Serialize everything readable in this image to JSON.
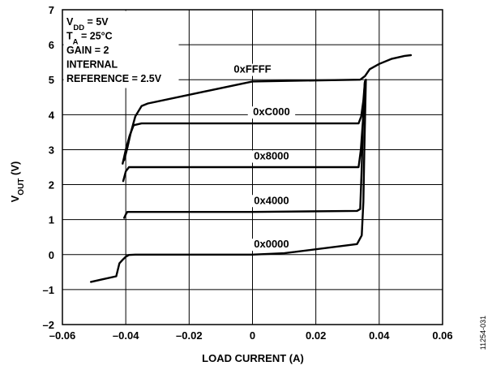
{
  "figure_id": "11254-031",
  "chart_data": {
    "type": "line",
    "title": "",
    "xlabel": "LOAD CURRENT (A)",
    "ylabel": {
      "base": "V",
      "sub": "OUT",
      "suffix": " (V)"
    },
    "xlim": [
      -0.06,
      0.06
    ],
    "ylim": [
      -2,
      7
    ],
    "grid": true,
    "xticks": [
      -0.06,
      -0.04,
      -0.02,
      0,
      0.02,
      0.04,
      0.06
    ],
    "xtick_labels": [
      "–0.06",
      "–0.04",
      "–0.02",
      "0",
      "0.02",
      "0.04",
      "0.06"
    ],
    "yticks": [
      -2,
      -1,
      0,
      1,
      2,
      3,
      4,
      5,
      6,
      7
    ],
    "ytick_labels": [
      "–2",
      "–1",
      "0",
      "1",
      "2",
      "3",
      "4",
      "5",
      "6",
      "7"
    ],
    "annotations": [
      {
        "parts": [
          [
            "V",
            ""
          ],
          [
            "DD",
            "sub"
          ],
          [
            " = 5V",
            ""
          ]
        ]
      },
      {
        "parts": [
          [
            "T",
            ""
          ],
          [
            "A",
            "sub"
          ],
          [
            " = 25°C",
            ""
          ]
        ]
      },
      {
        "parts": [
          [
            "GAIN = 2",
            ""
          ]
        ]
      },
      {
        "parts": [
          [
            "INTERNAL",
            ""
          ]
        ]
      },
      {
        "parts": [
          [
            "REFERENCE = 2.5V",
            ""
          ]
        ]
      }
    ],
    "series": [
      {
        "name": "0xFFFF",
        "label_at": [
          0,
          5.2
        ],
        "x": [
          -0.0405,
          -0.0395,
          -0.0385,
          -0.037,
          -0.035,
          -0.033,
          0,
          0.034,
          0.0355,
          0.037,
          0.04,
          0.044,
          0.048,
          0.05
        ],
        "y": [
          2.7,
          3.05,
          3.45,
          3.95,
          4.25,
          4.32,
          4.95,
          5.0,
          5.1,
          5.3,
          5.45,
          5.6,
          5.68,
          5.7
        ]
      },
      {
        "name": "0xC000",
        "label_at": [
          0.006,
          3.98
        ],
        "x": [
          -0.041,
          -0.04,
          -0.0388,
          -0.0375,
          -0.035,
          0,
          0.0335,
          0.0343,
          0.035,
          0.0355
        ],
        "y": [
          2.6,
          3.0,
          3.4,
          3.7,
          3.75,
          3.75,
          3.75,
          3.95,
          4.4,
          4.95
        ]
      },
      {
        "name": "0x8000",
        "label_at": [
          0.006,
          2.72
        ],
        "x": [
          -0.0408,
          -0.04,
          -0.039,
          -0.035,
          0,
          0.0335,
          0.0342,
          0.035,
          0.0355
        ],
        "y": [
          2.1,
          2.38,
          2.5,
          2.5,
          2.5,
          2.5,
          3.0,
          4.0,
          4.95
        ]
      },
      {
        "name": "0x4000",
        "label_at": [
          0.006,
          1.45
        ],
        "x": [
          -0.0405,
          -0.04,
          -0.0395,
          0,
          0.033,
          0.034,
          0.0345,
          0.035,
          0.0355
        ],
        "y": [
          1.05,
          1.15,
          1.22,
          1.22,
          1.25,
          1.3,
          2.5,
          4.2,
          4.95
        ]
      },
      {
        "name": "0x0000",
        "label_at": [
          0.006,
          0.2
        ],
        "x": [
          -0.051,
          -0.043,
          -0.042,
          -0.041,
          -0.04,
          -0.039,
          -0.037,
          0,
          0.01,
          0.033,
          0.0345,
          0.035,
          0.0353,
          0.0358
        ],
        "y": [
          -0.78,
          -0.62,
          -0.25,
          -0.15,
          -0.06,
          -0.01,
          0,
          0,
          0.04,
          0.3,
          0.55,
          1.5,
          3.0,
          5.0
        ]
      }
    ]
  }
}
